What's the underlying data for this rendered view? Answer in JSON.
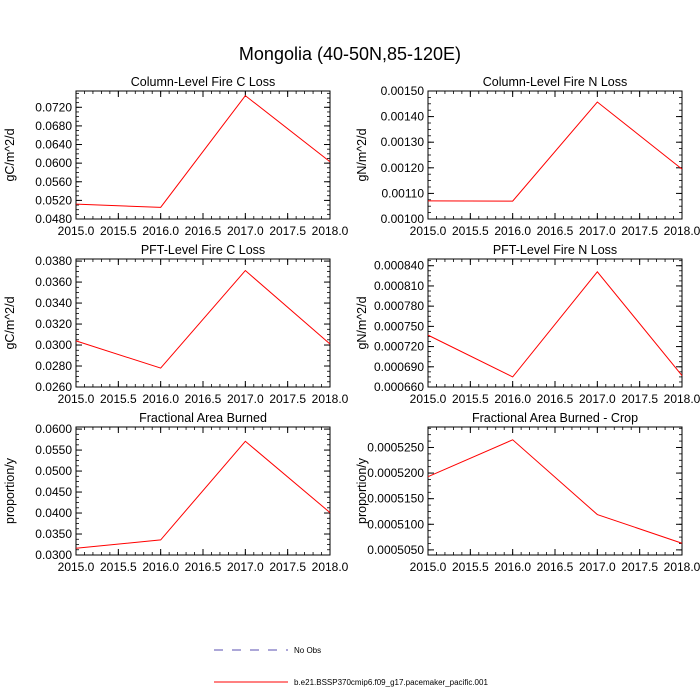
{
  "title": "Mongolia (40-50N,85-120E)",
  "chart_data": [
    {
      "type": "line",
      "title": "Column-Level Fire C Loss",
      "ylabel": "gC/m^2/d",
      "x": [
        2015,
        2016,
        2017,
        2018
      ],
      "xlim": [
        2015,
        2018
      ],
      "xticks": [
        "2015.0",
        "2015.5",
        "2016.0",
        "2016.5",
        "2017.0",
        "2017.5",
        "2018.0"
      ],
      "ylim": [
        0.048,
        0.0755
      ],
      "yticks": [
        "0.0480",
        "0.0520",
        "0.0560",
        "0.0600",
        "0.0640",
        "0.0680",
        "0.0720"
      ],
      "series": [
        {
          "name": "b.e21.BSSP370cmip6.f09_g17.pacemaker_pacific.001",
          "values": [
            0.0512,
            0.0505,
            0.0745,
            0.0603
          ]
        }
      ]
    },
    {
      "type": "line",
      "title": "Column-Level Fire N Loss",
      "ylabel": "gN/m^2/d",
      "x": [
        2015,
        2016,
        2017,
        2018
      ],
      "xlim": [
        2015,
        2018
      ],
      "xticks": [
        "2015.0",
        "2015.5",
        "2016.0",
        "2016.5",
        "2017.0",
        "2017.5",
        "2018.0"
      ],
      "ylim": [
        0.001,
        0.0015
      ],
      "yticks": [
        "0.00100",
        "0.00110",
        "0.00120",
        "0.00130",
        "0.00140",
        "0.00150"
      ],
      "series": [
        {
          "name": "b.e21.BSSP370cmip6.f09_g17.pacemaker_pacific.001",
          "values": [
            0.001071,
            0.00107,
            0.001457,
            0.001195
          ]
        }
      ]
    },
    {
      "type": "line",
      "title": "PFT-Level Fire C Loss",
      "ylabel": "gC/m^2/d",
      "x": [
        2015,
        2016,
        2017,
        2018
      ],
      "xlim": [
        2015,
        2018
      ],
      "xticks": [
        "2015.0",
        "2015.5",
        "2016.0",
        "2016.5",
        "2017.0",
        "2017.5",
        "2018.0"
      ],
      "ylim": [
        0.026,
        0.0382
      ],
      "yticks": [
        "0.0260",
        "0.0280",
        "0.0300",
        "0.0320",
        "0.0340",
        "0.0360",
        "0.0380"
      ],
      "series": [
        {
          "name": "b.e21.BSSP370cmip6.f09_g17.pacemaker_pacific.001",
          "values": [
            0.0304,
            0.0278,
            0.0371,
            0.0301
          ]
        }
      ]
    },
    {
      "type": "line",
      "title": "PFT-Level Fire N Loss",
      "ylabel": "gN/m^2/d",
      "x": [
        2015,
        2016,
        2017,
        2018
      ],
      "xlim": [
        2015,
        2018
      ],
      "xticks": [
        "2015.0",
        "2015.5",
        "2016.0",
        "2016.5",
        "2017.0",
        "2017.5",
        "2018.0"
      ],
      "ylim": [
        0.00066,
        0.00085
      ],
      "yticks": [
        "0.000660",
        "0.000690",
        "0.000720",
        "0.000750",
        "0.000780",
        "0.000810",
        "0.000840"
      ],
      "series": [
        {
          "name": "b.e21.BSSP370cmip6.f09_g17.pacemaker_pacific.001",
          "values": [
            0.000737,
            0.000675,
            0.000831,
            0.000677
          ]
        }
      ]
    },
    {
      "type": "line",
      "title": "Fractional Area Burned",
      "ylabel": "proportion/y",
      "x": [
        2015,
        2016,
        2017,
        2018
      ],
      "xlim": [
        2015,
        2018
      ],
      "xticks": [
        "2015.0",
        "2015.5",
        "2016.0",
        "2016.5",
        "2017.0",
        "2017.5",
        "2018.0"
      ],
      "ylim": [
        0.03,
        0.0605
      ],
      "yticks": [
        "0.0300",
        "0.0350",
        "0.0400",
        "0.0450",
        "0.0500",
        "0.0550",
        "0.0600"
      ],
      "series": [
        {
          "name": "b.e21.BSSP370cmip6.f09_g17.pacemaker_pacific.001",
          "values": [
            0.0316,
            0.0336,
            0.0571,
            0.0401
          ]
        }
      ]
    },
    {
      "type": "line",
      "title": "Fractional Area Burned - Crop",
      "ylabel": "proportion/y",
      "x": [
        2015,
        2016,
        2017,
        2018
      ],
      "xlim": [
        2015,
        2018
      ],
      "xticks": [
        "2015.0",
        "2015.5",
        "2016.0",
        "2016.5",
        "2017.0",
        "2017.5",
        "2018.0"
      ],
      "ylim": [
        0.000504,
        0.000529
      ],
      "yticks": [
        "0.0005050",
        "0.0005100",
        "0.0005150",
        "0.0005200",
        "0.0005250"
      ],
      "series": [
        {
          "name": "b.e21.BSSP370cmip6.f09_g17.pacemaker_pacific.001",
          "values": [
            0.0005193,
            0.0005265,
            0.0005119,
            0.0005063
          ]
        }
      ]
    }
  ],
  "legend": [
    {
      "label": "No Obs",
      "style": "dashed",
      "color": "#5a4fb0"
    },
    {
      "label": "b.e21.BSSP370cmip6.f09_g17.pacemaker_pacific.001",
      "style": "solid",
      "color": "#ff0000"
    }
  ]
}
